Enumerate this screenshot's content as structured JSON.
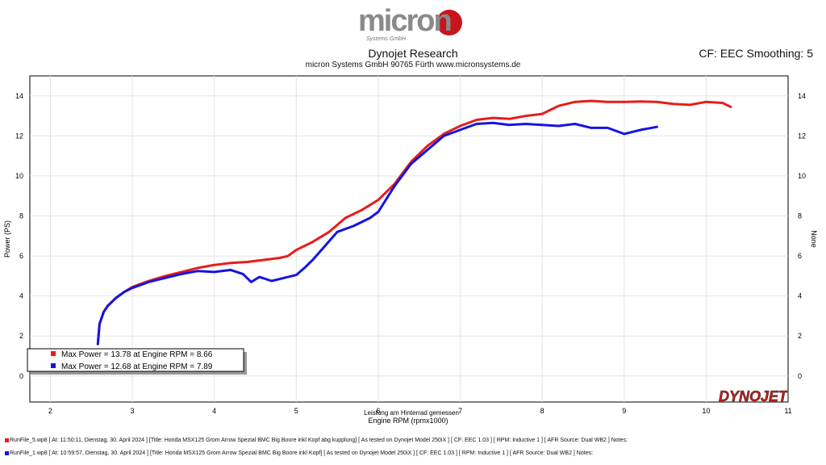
{
  "header": {
    "logo_text": "micron",
    "logo_subtext": "Systems GmbH",
    "title": "Dynojet Research",
    "subtitle": "micron Systems GmbH  90765 Fürth www.micronsystems.de",
    "cf_text": "CF: EEC Smoothing: 5"
  },
  "watermark": "DYNOJET",
  "colors": {
    "run1": "#e81c1c",
    "run2": "#1414e0",
    "bg": "#ffffff",
    "grid": "#e4e4e4"
  },
  "chart_data": {
    "type": "line",
    "title": "",
    "xlabel": "Engine RPM (rpmx1000)",
    "xlabel_top": "Leistung am Hinterrad gemessen",
    "ylabel": "Power (PS)",
    "ylabel_right": "None",
    "xlim": [
      1.75,
      11.0
    ],
    "ylim": [
      -1.3,
      15.0
    ],
    "xticks": [
      2,
      3,
      4,
      5,
      6,
      7,
      8,
      9,
      10,
      11
    ],
    "yticks": [
      0,
      2,
      4,
      6,
      8,
      10,
      12,
      14
    ],
    "grid": true,
    "legend_position": "bottom-left",
    "legend": [
      "Max Power = 13.78 at Engine RPM = 8.66",
      "Max Power = 12.68 at Engine RPM = 7.89"
    ],
    "series": [
      {
        "x": [
          2.58,
          2.6,
          2.65,
          2.7,
          2.8,
          2.9,
          3.0,
          3.2,
          3.4,
          3.6,
          3.8,
          4.0,
          4.2,
          4.4,
          4.6,
          4.8,
          4.9,
          5.0,
          5.2,
          5.4,
          5.6,
          5.8,
          6.0,
          6.2,
          6.4,
          6.6,
          6.8,
          7.0,
          7.2,
          7.4,
          7.6,
          7.8,
          8.0,
          8.2,
          8.4,
          8.6,
          8.8,
          9.0,
          9.2,
          9.4,
          9.6,
          9.8,
          10.0,
          10.2,
          10.3
        ],
        "y": [
          1.6,
          2.6,
          3.2,
          3.5,
          3.9,
          4.2,
          4.45,
          4.75,
          5.0,
          5.2,
          5.4,
          5.55,
          5.65,
          5.7,
          5.8,
          5.9,
          6.0,
          6.3,
          6.7,
          7.2,
          7.9,
          8.3,
          8.8,
          9.6,
          10.7,
          11.5,
          12.1,
          12.5,
          12.8,
          12.9,
          12.85,
          13.0,
          13.1,
          13.5,
          13.7,
          13.75,
          13.7,
          13.7,
          13.72,
          13.7,
          13.6,
          13.55,
          13.7,
          13.65,
          13.45
        ]
      },
      {
        "x": [
          2.58,
          2.6,
          2.65,
          2.7,
          2.8,
          2.9,
          3.0,
          3.2,
          3.4,
          3.6,
          3.8,
          4.0,
          4.2,
          4.35,
          4.45,
          4.55,
          4.7,
          4.85,
          5.0,
          5.1,
          5.2,
          5.35,
          5.5,
          5.7,
          5.9,
          6.0,
          6.2,
          6.4,
          6.6,
          6.8,
          7.0,
          7.2,
          7.4,
          7.6,
          7.8,
          8.0,
          8.2,
          8.4,
          8.6,
          8.8,
          9.0,
          9.2,
          9.4
        ],
        "y": [
          1.6,
          2.6,
          3.2,
          3.5,
          3.9,
          4.2,
          4.4,
          4.7,
          4.9,
          5.1,
          5.25,
          5.2,
          5.3,
          5.1,
          4.7,
          4.95,
          4.75,
          4.9,
          5.05,
          5.4,
          5.8,
          6.5,
          7.2,
          7.5,
          7.9,
          8.2,
          9.5,
          10.6,
          11.3,
          12.0,
          12.3,
          12.6,
          12.65,
          12.55,
          12.6,
          12.55,
          12.5,
          12.6,
          12.4,
          12.4,
          12.1,
          12.3,
          12.45
        ]
      }
    ]
  },
  "runs": [
    {
      "label": "RunFile_5.wp8 [ At: 11:50:11, Dienstag, 30. April 2024 ] [Title: Honda MSX125 Grom Arrow Spezial BMC Big Boore inkl Kopf abg kupplung]  [ As tested on Dynojet Model 250iX ] [ CF: EEC 1.03 ] [ RPM: Inductive 1 ] [ AFR Source: Dual WB2 ] Notes:"
    },
    {
      "label": "RunFile_1.wp8 [ At: 10:59:57, Dienstag, 30. April 2024 ] [Title: Honda MSX125 Grom Arrow Spezial BMC Big Boore inkl Kopf]  [ As tested on Dynojet Model 250iX ] [ CF: EEC 1.03 ] [ RPM: Inductive 1 ] [ AFR Source: Dual WB2 ] Notes:"
    }
  ]
}
